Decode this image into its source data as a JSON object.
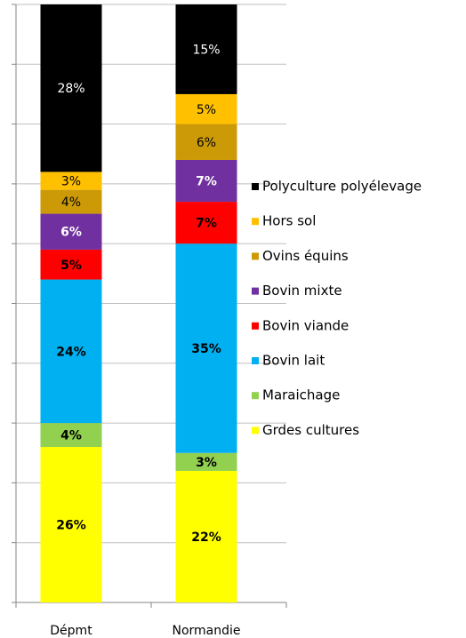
{
  "chart_data": {
    "type": "stacked_bar",
    "categories": [
      "Dépmt",
      "Normandie"
    ],
    "series": [
      {
        "name": "Polyculture polyélevage",
        "color": "#000000",
        "values": [
          28,
          15
        ],
        "value_labels": [
          "28%",
          "15%"
        ]
      },
      {
        "name": "Hors sol",
        "color": "#ffc000",
        "values": [
          3,
          5
        ],
        "value_labels": [
          "3%",
          "5%"
        ]
      },
      {
        "name": "Ovins équins",
        "color": "#cc9a06",
        "values": [
          4,
          6
        ],
        "value_labels": [
          "4%",
          "6%"
        ]
      },
      {
        "name": "Bovin mixte",
        "color": "#7030a0",
        "values": [
          6,
          7
        ],
        "value_labels": [
          "6%",
          "7%"
        ]
      },
      {
        "name": "Bovin viande",
        "color": "#ff0000",
        "values": [
          5,
          7
        ],
        "value_labels": [
          "5%",
          "7%"
        ]
      },
      {
        "name": "Bovin lait",
        "color": "#00b0f0",
        "values": [
          24,
          35
        ],
        "value_labels": [
          "24%",
          "35%"
        ]
      },
      {
        "name": "Maraichage",
        "color": "#92d050",
        "values": [
          4,
          3
        ],
        "value_labels": [
          "4%",
          "3%"
        ]
      },
      {
        "name": "Grdes cultures",
        "color": "#ffff00",
        "values": [
          26,
          22
        ],
        "value_labels": [
          "26%",
          "22%"
        ]
      }
    ],
    "ylim": [
      0,
      100
    ],
    "yticks": [
      0,
      10,
      20,
      30,
      40,
      50,
      60,
      70,
      80,
      90,
      100
    ],
    "grid": true,
    "legend": "right"
  }
}
